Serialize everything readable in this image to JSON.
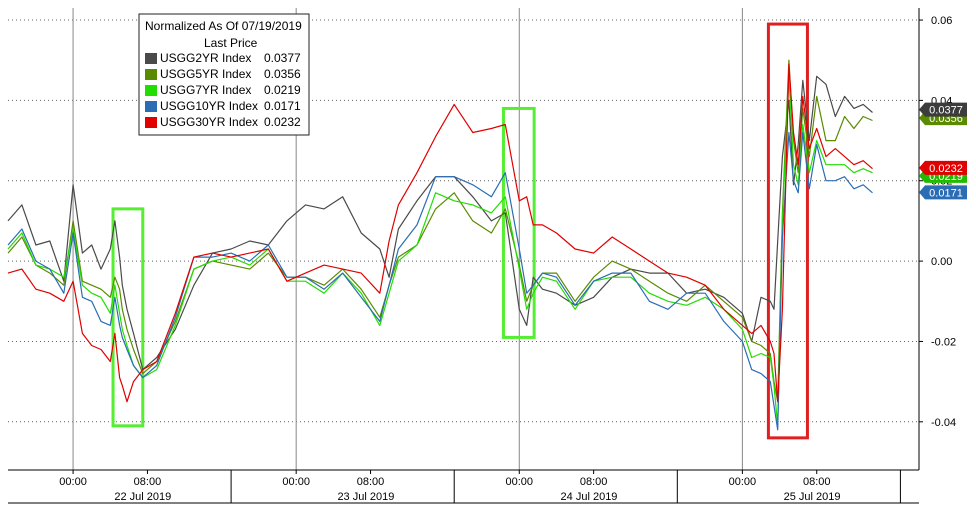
{
  "chart_data": {
    "type": "line",
    "title": "",
    "xlabel": "",
    "ylabel": "",
    "ylim": [
      -0.052,
      0.063
    ],
    "y_ticks": [
      "0.06",
      "0.04",
      "0.02",
      "0.00",
      "-0.02",
      "-0.04"
    ],
    "y_tick_values": [
      0.06,
      0.04,
      0.02,
      0.0,
      -0.02,
      -0.04
    ],
    "grid": true,
    "x_time_labels": [
      {
        "h": 0.0,
        "label": "00:00"
      },
      {
        "h": 8.0,
        "label": "08:00"
      },
      {
        "h": 24.0,
        "label": "00:00"
      },
      {
        "h": 32.0,
        "label": "08:00"
      },
      {
        "h": 48.0,
        "label": "00:00"
      },
      {
        "h": 56.0,
        "label": "08:00"
      },
      {
        "h": 72.0,
        "label": "00:00"
      },
      {
        "h": 80.0,
        "label": "08:00"
      }
    ],
    "x_date_labels": [
      {
        "h": 7.5,
        "label": "22 Jul 2019"
      },
      {
        "h": 31.5,
        "label": "23 Jul 2019"
      },
      {
        "h": 55.5,
        "label": "24 Jul 2019"
      },
      {
        "h": 79.5,
        "label": "25 Jul 2019"
      }
    ],
    "legend": {
      "title_line1": "Normalized As Of 07/19/2019",
      "title_line2": "Last Price",
      "placement": "top-left",
      "entries": [
        {
          "name": "USGG2YR Index",
          "value": "0.0377",
          "color": "#4a4a4a"
        },
        {
          "name": "USGG5YR Index",
          "value": "0.0356",
          "color": "#5a8a00"
        },
        {
          "name": "USGG7YR Index",
          "value": "0.0219",
          "color": "#22dd00"
        },
        {
          "name": "USGG10YR Index",
          "value": "0.0171",
          "color": "#2a6db5"
        },
        {
          "name": "USGG30YR Index",
          "value": "0.0232",
          "color": "#e00000"
        }
      ]
    },
    "value_badges": [
      {
        "text": "0.0377",
        "value": 0.0377,
        "color": "#3c3c3c"
      },
      {
        "text": "0.0356",
        "value": 0.0356,
        "color": "#5a8a00"
      },
      {
        "text": "0.0219",
        "value": 0.0219,
        "color": "#22bb00"
      },
      {
        "text": "0.0171",
        "value": 0.0171,
        "color": "#2a6db5"
      },
      {
        "text": "0.0232",
        "value": 0.0232,
        "color": "#e00000"
      }
    ],
    "highlight_boxes": [
      {
        "color": "#55ee33",
        "x": [
          4.3,
          7.5
        ],
        "y": [
          -0.041,
          0.013
        ]
      },
      {
        "color": "#55ee33",
        "x": [
          46.3,
          49.6
        ],
        "y": [
          -0.019,
          0.038
        ]
      },
      {
        "color": "#e02020",
        "x": [
          74.8,
          79.0
        ],
        "y": [
          -0.044,
          0.059
        ]
      }
    ],
    "series": [
      {
        "name": "USGG2YR Index",
        "color": "#4a4a4a",
        "x": [
          -7,
          -5.5,
          -4,
          -2.5,
          -1,
          0,
          1,
          2,
          3,
          4,
          4.5,
          5,
          5.3,
          5.8,
          6.5,
          7.5,
          9,
          11,
          13,
          15,
          17,
          19,
          21,
          23,
          25,
          27,
          29,
          31,
          33,
          34,
          35,
          37,
          39,
          41,
          43,
          45,
          46.5,
          48,
          48.8,
          49.5,
          50.5,
          52,
          54,
          56,
          58,
          60,
          62,
          64,
          66,
          68,
          70,
          72,
          73,
          74,
          75,
          75.4,
          75.8,
          76.3,
          77,
          77.5,
          78,
          78.5,
          79.2,
          80,
          81,
          82,
          83,
          84,
          85,
          86
        ],
        "y": [
          0.01,
          0.014,
          0.004,
          0.005,
          -0.005,
          0.019,
          0.002,
          0.004,
          -0.002,
          0.003,
          0.01,
          0.001,
          -0.006,
          -0.012,
          -0.018,
          -0.027,
          -0.024,
          -0.017,
          -0.006,
          0.002,
          0.003,
          0.005,
          0.004,
          0.01,
          0.014,
          0.013,
          0.016,
          0.007,
          0.003,
          -0.004,
          0.008,
          0.015,
          0.021,
          0.021,
          0.016,
          0.01,
          0.012,
          -0.012,
          -0.016,
          -0.004,
          -0.007,
          -0.008,
          -0.011,
          -0.009,
          -0.004,
          -0.002,
          -0.003,
          -0.003,
          -0.008,
          -0.007,
          -0.009,
          -0.013,
          -0.02,
          -0.009,
          -0.01,
          -0.012,
          0.005,
          0.026,
          0.04,
          0.019,
          0.029,
          0.045,
          0.03,
          0.046,
          0.044,
          0.036,
          0.041,
          0.038,
          0.039,
          0.037
        ]
      },
      {
        "name": "USGG5YR Index",
        "color": "#5a8a00",
        "x": [
          -7,
          -5.5,
          -4,
          -2.5,
          -1,
          0,
          1,
          2,
          3,
          4,
          4.5,
          5,
          5.3,
          5.8,
          6.5,
          7.5,
          9,
          11,
          13,
          15,
          17,
          19,
          21,
          23,
          25,
          27,
          29,
          31,
          33,
          34,
          35,
          37,
          39,
          41,
          43,
          45,
          46.5,
          48,
          48.8,
          49.5,
          50.5,
          52,
          54,
          56,
          58,
          60,
          62,
          64,
          66,
          68,
          70,
          72,
          73,
          74,
          75,
          75.4,
          75.8,
          76.3,
          77,
          77.5,
          78,
          78.5,
          79.2,
          80,
          81,
          82,
          83,
          84,
          85,
          86
        ],
        "y": [
          0.002,
          0.006,
          -0.001,
          -0.003,
          -0.006,
          0.01,
          -0.005,
          -0.006,
          -0.007,
          -0.009,
          -0.004,
          -0.007,
          -0.012,
          -0.017,
          -0.022,
          -0.028,
          -0.025,
          -0.015,
          -0.002,
          0.0,
          -0.001,
          -0.002,
          0.002,
          -0.004,
          -0.004,
          -0.006,
          -0.002,
          -0.007,
          -0.014,
          -0.006,
          0.001,
          0.004,
          0.013,
          0.017,
          0.01,
          0.007,
          0.013,
          -0.001,
          -0.01,
          -0.006,
          -0.003,
          -0.003,
          -0.01,
          -0.004,
          0.0,
          -0.002,
          -0.005,
          -0.008,
          -0.01,
          -0.006,
          -0.01,
          -0.014,
          -0.02,
          -0.021,
          -0.023,
          -0.03,
          -0.035,
          0.012,
          0.05,
          0.03,
          0.022,
          0.038,
          0.026,
          0.041,
          0.03,
          0.03,
          0.036,
          0.033,
          0.036,
          0.035
        ]
      },
      {
        "name": "USGG7YR Index",
        "color": "#22dd00",
        "x": [
          -7,
          -5.5,
          -4,
          -2.5,
          -1,
          0,
          1,
          2,
          3,
          4,
          4.5,
          5,
          5.3,
          5.8,
          6.5,
          7.5,
          9,
          11,
          13,
          15,
          17,
          19,
          21,
          23,
          25,
          27,
          29,
          31,
          33,
          34,
          35,
          37,
          39,
          41,
          43,
          45,
          46.5,
          48,
          48.8,
          49.5,
          50.5,
          52,
          54,
          56,
          58,
          60,
          62,
          64,
          66,
          68,
          70,
          72,
          73,
          74,
          75,
          75.4,
          75.8,
          76.3,
          77,
          77.5,
          78,
          78.5,
          79.2,
          80,
          81,
          82,
          83,
          84,
          85,
          86
        ],
        "y": [
          0.003,
          0.007,
          -0.001,
          -0.002,
          -0.004,
          0.008,
          -0.006,
          -0.008,
          -0.009,
          -0.013,
          -0.006,
          -0.013,
          -0.017,
          -0.021,
          -0.026,
          -0.029,
          -0.027,
          -0.016,
          -0.002,
          0.0,
          0.001,
          -0.001,
          0.003,
          -0.005,
          -0.005,
          -0.008,
          -0.003,
          -0.008,
          -0.016,
          -0.008,
          0.0,
          0.004,
          0.017,
          0.015,
          0.014,
          0.012,
          0.016,
          -0.002,
          -0.012,
          -0.008,
          -0.004,
          -0.005,
          -0.012,
          -0.005,
          -0.004,
          -0.004,
          -0.008,
          -0.01,
          -0.011,
          -0.009,
          -0.012,
          -0.017,
          -0.024,
          -0.023,
          -0.024,
          -0.031,
          -0.041,
          0.01,
          0.046,
          0.024,
          0.019,
          0.034,
          0.022,
          0.03,
          0.024,
          0.024,
          0.024,
          0.022,
          0.023,
          0.022
        ]
      },
      {
        "name": "USGG10YR Index",
        "color": "#2a6db5",
        "x": [
          -7,
          -5.5,
          -4,
          -2.5,
          -1,
          0,
          1,
          2,
          3,
          4,
          4.5,
          5,
          5.3,
          5.8,
          6.5,
          7.5,
          9,
          11,
          13,
          15,
          17,
          19,
          21,
          23,
          25,
          27,
          29,
          31,
          33,
          34,
          35,
          37,
          39,
          41,
          43,
          45,
          46.5,
          48,
          48.8,
          49.5,
          50.5,
          52,
          54,
          56,
          58,
          60,
          62,
          64,
          66,
          68,
          70,
          72,
          73,
          74,
          75,
          75.4,
          75.8,
          76.3,
          77,
          77.5,
          78,
          78.5,
          79.2,
          80,
          81,
          82,
          83,
          84,
          85,
          86
        ],
        "y": [
          0.004,
          0.008,
          0.0,
          -0.002,
          -0.008,
          0.007,
          -0.009,
          -0.01,
          -0.015,
          -0.016,
          -0.009,
          -0.016,
          -0.019,
          -0.022,
          -0.026,
          -0.029,
          -0.026,
          -0.014,
          0.001,
          0.001,
          0.002,
          0.0,
          0.004,
          -0.004,
          -0.004,
          -0.007,
          -0.003,
          -0.009,
          -0.015,
          -0.006,
          0.003,
          0.009,
          0.021,
          0.021,
          0.019,
          0.016,
          0.022,
          0.003,
          -0.008,
          -0.006,
          -0.003,
          -0.004,
          -0.011,
          -0.005,
          -0.003,
          -0.003,
          -0.01,
          -0.012,
          -0.008,
          -0.008,
          -0.015,
          -0.02,
          -0.027,
          -0.028,
          -0.03,
          -0.036,
          -0.042,
          0.006,
          0.032,
          0.02,
          0.017,
          0.032,
          0.018,
          0.029,
          0.02,
          0.02,
          0.021,
          0.018,
          0.019,
          0.017
        ]
      },
      {
        "name": "USGG30YR Index",
        "color": "#e00000",
        "x": [
          -7,
          -5.5,
          -4,
          -2.5,
          -1,
          0,
          1,
          2,
          3,
          4,
          4.5,
          5,
          5.3,
          5.8,
          6.5,
          7.5,
          9,
          11,
          13,
          15,
          17,
          19,
          21,
          23,
          25,
          27,
          29,
          31,
          33,
          34,
          35,
          37,
          39,
          41,
          43,
          45,
          46.5,
          48,
          48.8,
          49.5,
          50.5,
          52,
          54,
          56,
          58,
          60,
          62,
          64,
          66,
          68,
          70,
          72,
          73,
          74,
          75,
          75.4,
          75.8,
          76.3,
          77,
          77.5,
          78,
          78.5,
          79.2,
          80,
          81,
          82,
          83,
          84,
          85,
          86
        ],
        "y": [
          -0.003,
          -0.002,
          -0.007,
          -0.008,
          -0.01,
          -0.005,
          -0.018,
          -0.021,
          -0.022,
          -0.025,
          -0.018,
          -0.029,
          -0.031,
          -0.035,
          -0.03,
          -0.027,
          -0.025,
          -0.013,
          0.001,
          0.002,
          0.001,
          0.002,
          0.003,
          -0.005,
          -0.003,
          -0.001,
          -0.002,
          -0.003,
          -0.008,
          0.005,
          0.014,
          0.022,
          0.031,
          0.039,
          0.032,
          0.033,
          0.034,
          0.015,
          0.016,
          0.009,
          0.009,
          0.007,
          0.003,
          0.002,
          0.006,
          0.003,
          0.0,
          -0.003,
          -0.004,
          -0.006,
          -0.012,
          -0.016,
          -0.018,
          -0.016,
          -0.02,
          -0.023,
          -0.035,
          -0.012,
          0.049,
          0.032,
          0.024,
          0.041,
          0.028,
          0.033,
          0.026,
          0.028,
          0.026,
          0.024,
          0.025,
          0.023
        ]
      }
    ]
  }
}
